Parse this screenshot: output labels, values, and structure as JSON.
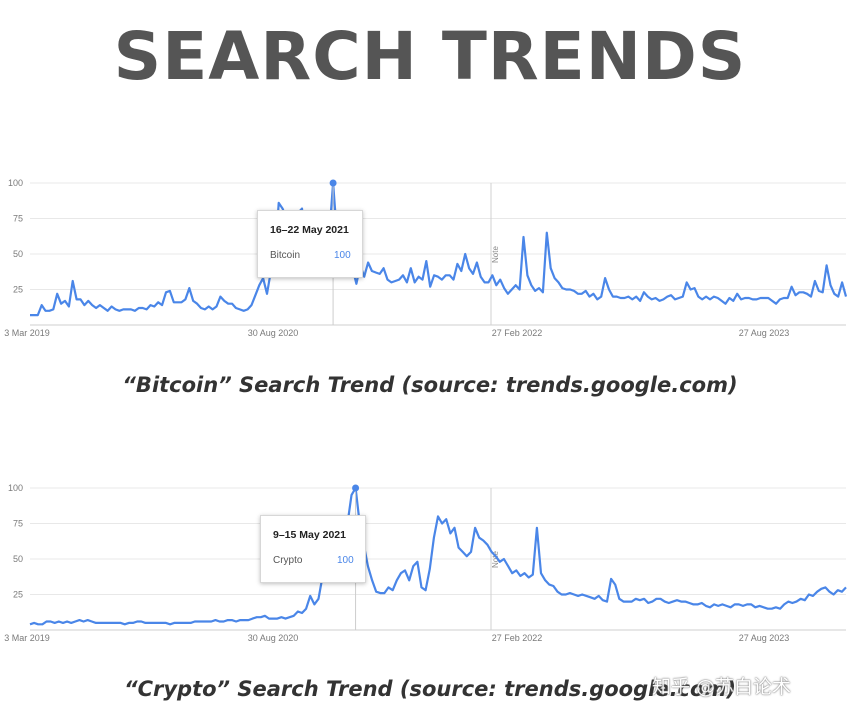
{
  "title": "SEARCH TRENDS",
  "charts": [
    {
      "caption": "“Bitcoin” Search Trend (source: trends.google.com)",
      "tooltip": {
        "date": "16–22 May 2021",
        "term": "Bitcoin",
        "value": "100"
      }
    },
    {
      "caption": "“Crypto” Search Trend (source: trends.google.com)",
      "tooltip": {
        "date": "9–15 May 2021",
        "term": "Crypto",
        "value": "100"
      }
    }
  ],
  "watermark": "知乎 @苏白论术",
  "colors": {
    "line": "#4a86e8",
    "grid": "#e8e8e8",
    "axis_text": "#7a7a7a",
    "title": "#555555"
  },
  "chart_data": [
    {
      "type": "line",
      "x_tick_labels": [
        "3 Mar 2019",
        "30 Aug 2020",
        "27 Feb 2022",
        "27 Aug 2023"
      ],
      "y_ticks": [
        25,
        50,
        75,
        100
      ],
      "ylim": [
        0,
        100
      ],
      "note_label": "Note",
      "grid": true,
      "series": [
        {
          "name": "Bitcoin",
          "values": [
            7,
            7,
            7,
            14,
            10,
            10,
            11,
            22,
            15,
            17,
            13,
            31,
            18,
            18,
            14,
            17,
            14,
            12,
            14,
            12,
            10,
            13,
            11,
            10,
            11,
            11,
            11,
            10,
            12,
            12,
            11,
            14,
            13,
            16,
            14,
            23,
            24,
            16,
            16,
            16,
            18,
            26,
            17,
            15,
            12,
            11,
            13,
            11,
            13,
            20,
            17,
            15,
            15,
            12,
            11,
            10,
            11,
            14,
            21,
            28,
            33,
            22,
            38,
            43,
            86,
            82,
            75,
            53,
            80,
            79,
            82,
            54,
            57,
            51,
            48,
            70,
            45,
            63,
            100,
            63,
            54,
            57,
            42,
            40,
            29,
            42,
            34,
            44,
            38,
            37,
            36,
            40,
            32,
            30,
            31,
            32,
            35,
            30,
            40,
            30,
            34,
            32,
            45,
            27,
            35,
            34,
            32,
            35,
            35,
            32,
            43,
            38,
            50,
            40,
            36,
            44,
            34,
            30,
            30,
            35,
            28,
            32,
            26,
            22,
            25,
            28,
            25,
            62,
            35,
            28,
            24,
            26,
            23,
            65,
            40,
            33,
            30,
            26,
            25,
            25,
            24,
            22,
            22,
            24,
            20,
            22,
            18,
            20,
            33,
            25,
            20,
            20,
            19,
            19,
            20,
            18,
            20,
            17,
            23,
            20,
            18,
            19,
            17,
            18,
            20,
            21,
            18,
            19,
            20,
            30,
            25,
            26,
            20,
            18,
            20,
            18,
            20,
            19,
            17,
            15,
            19,
            17,
            22,
            18,
            19,
            19,
            18,
            18,
            19,
            19,
            19,
            17,
            15,
            18,
            19,
            19,
            27,
            21,
            23,
            23,
            22,
            20,
            31,
            24,
            23,
            42,
            28,
            22,
            20,
            30,
            20
          ]
        }
      ]
    },
    {
      "type": "line",
      "x_tick_labels": [
        "3 Mar 2019",
        "30 Aug 2020",
        "27 Feb 2022",
        "27 Aug 2023"
      ],
      "y_ticks": [
        25,
        50,
        75,
        100
      ],
      "ylim": [
        0,
        100
      ],
      "note_label": "Note",
      "grid": true,
      "series": [
        {
          "name": "Crypto",
          "values": [
            4,
            5,
            4,
            4,
            6,
            6,
            5,
            6,
            5,
            6,
            5,
            6,
            7,
            6,
            7,
            6,
            5,
            5,
            5,
            5,
            5,
            5,
            5,
            4,
            5,
            5,
            6,
            6,
            5,
            5,
            5,
            5,
            5,
            5,
            4,
            5,
            5,
            5,
            5,
            5,
            6,
            6,
            6,
            6,
            6,
            7,
            6,
            6,
            7,
            7,
            6,
            7,
            7,
            7,
            8,
            9,
            9,
            10,
            8,
            8,
            8,
            9,
            8,
            9,
            10,
            13,
            12,
            15,
            24,
            18,
            22,
            38,
            55,
            52,
            58,
            50,
            65,
            74,
            95,
            100,
            75,
            60,
            45,
            35,
            27,
            26,
            26,
            30,
            28,
            35,
            40,
            42,
            35,
            45,
            48,
            30,
            28,
            43,
            65,
            80,
            75,
            78,
            68,
            72,
            58,
            55,
            52,
            55,
            72,
            65,
            63,
            60,
            55,
            52,
            48,
            50,
            45,
            40,
            42,
            38,
            40,
            37,
            39,
            72,
            40,
            35,
            32,
            31,
            27,
            25,
            25,
            26,
            25,
            24,
            25,
            24,
            23,
            22,
            24,
            21,
            20,
            36,
            32,
            22,
            20,
            20,
            20,
            22,
            21,
            22,
            19,
            20,
            22,
            22,
            20,
            19,
            20,
            21,
            20,
            20,
            19,
            18,
            18,
            19,
            17,
            16,
            18,
            17,
            18,
            17,
            16,
            18,
            18,
            17,
            18,
            18,
            16,
            17,
            16,
            15,
            15,
            16,
            15,
            18,
            20,
            19,
            20,
            22,
            21,
            25,
            24,
            27,
            29,
            30,
            27,
            25,
            28,
            27,
            30
          ]
        }
      ]
    }
  ]
}
